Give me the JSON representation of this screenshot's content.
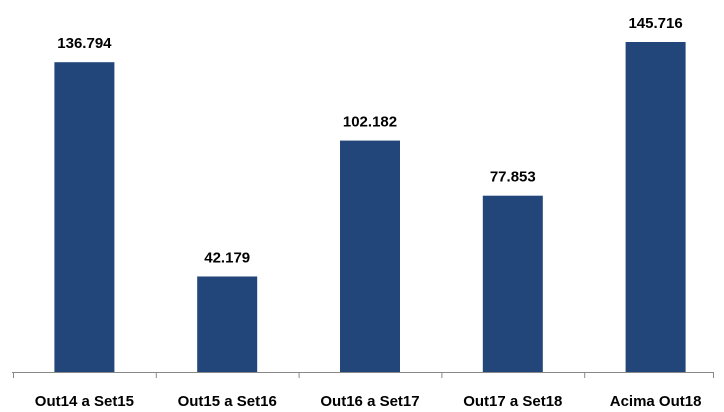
{
  "chart_data": {
    "type": "bar",
    "categories": [
      "Out14 a Set15",
      "Out15 a Set16",
      "Out16 a Set17",
      "Out17 a Set18",
      "Acima Out18"
    ],
    "values": [
      136794,
      42179,
      102182,
      77853,
      145716
    ],
    "value_labels": [
      "136.794",
      "42.179",
      "102.182",
      "77.853",
      "145.716"
    ],
    "color": "#22467a"
  }
}
